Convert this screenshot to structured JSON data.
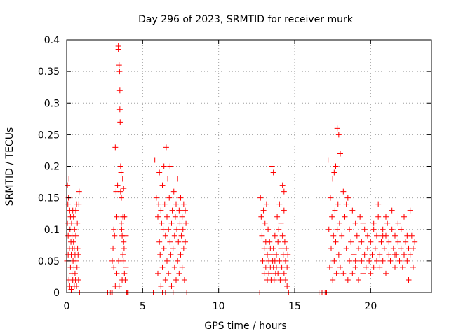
{
  "chart_data": {
    "type": "scatter",
    "title": "Day 296 of 2023, SRMTID for receiver murk",
    "xlabel": "GPS time / hours",
    "ylabel": "SRMTID / TECUs",
    "xlim": [
      0,
      24
    ],
    "ylim": [
      0,
      0.4
    ],
    "xticks": [
      0,
      5,
      10,
      15,
      20
    ],
    "yticks": [
      0,
      0.05,
      0.1,
      0.15,
      0.2,
      0.25,
      0.3,
      0.35,
      0.4
    ],
    "xtick_labels": [
      "0",
      "5",
      "10",
      "15",
      "20"
    ],
    "ytick_labels": [
      "0",
      "0.05",
      "0.1",
      "0.15",
      "0.2",
      "0.25",
      "0.3",
      "0.35",
      "0.4"
    ],
    "grid": true,
    "marker": "+",
    "marker_color": "#ff0000",
    "series": [
      {
        "name": "SRMTID",
        "x": [
          0.0,
          0.0,
          0.02,
          0.05,
          0.05,
          0.08,
          0.1,
          0.1,
          0.12,
          0.15,
          0.15,
          0.18,
          0.2,
          0.2,
          0.22,
          0.25,
          0.25,
          0.28,
          0.3,
          0.3,
          0.32,
          0.35,
          0.35,
          0.38,
          0.4,
          0.4,
          0.42,
          0.45,
          0.45,
          0.48,
          0.5,
          0.5,
          0.52,
          0.55,
          0.55,
          0.58,
          0.6,
          0.6,
          0.62,
          0.65,
          0.65,
          0.68,
          0.7,
          0.72,
          0.75,
          0.78,
          0.8,
          0.82,
          0.85,
          2.7,
          2.8,
          2.9,
          3.0,
          3.0,
          3.05,
          3.1,
          3.1,
          3.15,
          3.2,
          3.2,
          3.25,
          3.3,
          3.3,
          3.35,
          3.4,
          3.4,
          3.42,
          3.45,
          3.45,
          3.48,
          3.5,
          3.5,
          3.52,
          3.55,
          3.55,
          3.58,
          3.6,
          3.6,
          3.62,
          3.65,
          3.65,
          3.68,
          3.7,
          3.7,
          3.72,
          3.75,
          3.75,
          3.78,
          3.8,
          3.8,
          3.85,
          3.9,
          3.9,
          3.95,
          4.0,
          4.05,
          5.7,
          5.8,
          5.9,
          6.0,
          6.0,
          6.05,
          6.1,
          6.1,
          6.15,
          6.2,
          6.2,
          6.25,
          6.3,
          6.3,
          6.35,
          6.4,
          6.4,
          6.45,
          6.5,
          6.5,
          6.55,
          6.6,
          6.6,
          6.65,
          6.7,
          6.7,
          6.75,
          6.8,
          6.8,
          6.85,
          6.9,
          6.9,
          6.95,
          7.0,
          7.0,
          7.05,
          7.1,
          7.1,
          7.15,
          7.2,
          7.2,
          7.25,
          7.3,
          7.3,
          7.35,
          7.4,
          7.4,
          7.45,
          7.5,
          7.5,
          7.55,
          7.6,
          7.6,
          7.65,
          7.7,
          7.7,
          7.75,
          7.8,
          7.8,
          7.85,
          7.9,
          6.5,
          6.3,
          7.0,
          12.7,
          12.75,
          12.8,
          12.85,
          12.9,
          12.95,
          13.0,
          13.0,
          13.05,
          13.1,
          13.1,
          13.15,
          13.2,
          13.2,
          13.25,
          13.3,
          13.3,
          13.35,
          13.4,
          13.4,
          13.45,
          13.5,
          13.5,
          13.55,
          13.6,
          13.6,
          13.65,
          13.7,
          13.7,
          13.75,
          13.8,
          13.8,
          13.85,
          13.9,
          13.9,
          13.95,
          14.0,
          14.0,
          14.05,
          14.1,
          14.1,
          14.15,
          14.2,
          14.2,
          14.25,
          14.3,
          14.3,
          14.35,
          14.4,
          14.4,
          14.45,
          14.5,
          14.5,
          14.55,
          14.6,
          13.5,
          13.6,
          14.3,
          16.6,
          16.8,
          17.0,
          17.1,
          17.2,
          17.25,
          17.3,
          17.35,
          17.4,
          17.45,
          17.5,
          17.5,
          17.55,
          17.6,
          17.6,
          17.65,
          17.7,
          17.7,
          17.75,
          17.8,
          17.8,
          17.85,
          17.9,
          17.9,
          17.95,
          18.0,
          18.0,
          18.1,
          18.2,
          18.2,
          18.3,
          18.4,
          18.4,
          18.5,
          18.6,
          18.6,
          18.7,
          18.8,
          18.8,
          18.9,
          19.0,
          19.0,
          19.1,
          19.2,
          19.2,
          19.3,
          19.4,
          19.4,
          19.5,
          19.6,
          19.6,
          19.7,
          19.8,
          19.8,
          19.9,
          20.0,
          20.0,
          20.1,
          20.2,
          20.2,
          20.3,
          20.4,
          20.4,
          20.5,
          20.6,
          20.6,
          20.7,
          20.8,
          20.8,
          20.9,
          21.0,
          21.0,
          21.1,
          21.2,
          21.2,
          21.3,
          21.4,
          21.4,
          21.5,
          21.6,
          21.6,
          21.7,
          21.8,
          21.8,
          21.9,
          22.0,
          22.0,
          22.1,
          22.2,
          22.2,
          22.3,
          22.4,
          22.4,
          22.5,
          22.6,
          22.6,
          22.7,
          22.8,
          22.8,
          22.9,
          20.5,
          21.0,
          19.5,
          22.0,
          18.5,
          20.8,
          21.6,
          22.5,
          19.0,
          20.2
        ],
        "y": [
          0.21,
          0.18,
          0.05,
          0.17,
          0.11,
          0.14,
          0.06,
          0.09,
          0.15,
          0.02,
          0.18,
          0.07,
          0.13,
          0.01,
          0.1,
          0.04,
          0.12,
          0.08,
          0.005,
          0.06,
          0.11,
          0.03,
          0.09,
          0.07,
          0.13,
          0.02,
          0.05,
          0.08,
          0.12,
          0.04,
          0.01,
          0.07,
          0.1,
          0.03,
          0.06,
          0.02,
          0.13,
          0.09,
          0.05,
          0.14,
          0.01,
          0.04,
          0.11,
          0.07,
          0.06,
          0.02,
          0.14,
          0.16,
          0.0,
          0.0,
          0.0,
          0.0,
          0.0,
          0.05,
          0.07,
          0.04,
          0.1,
          0.09,
          0.01,
          0.23,
          0.16,
          0.03,
          0.12,
          0.17,
          0.39,
          0.385,
          0.05,
          0.36,
          0.01,
          0.35,
          0.32,
          0.29,
          0.27,
          0.2,
          0.16,
          0.19,
          0.15,
          0.11,
          0.1,
          0.02,
          0.09,
          0.18,
          0.06,
          0.12,
          0.05,
          0.08,
          0.165,
          0.07,
          0.03,
          0.12,
          0.02,
          0.04,
          0.09,
          0.0,
          0.0,
          0.0,
          0.0,
          0.21,
          0.15,
          0.03,
          0.12,
          0.14,
          0.08,
          0.19,
          0.06,
          0.13,
          0.01,
          0.11,
          0.17,
          0.04,
          0.1,
          0.2,
          0.07,
          0.14,
          0.02,
          0.09,
          0.23,
          0.12,
          0.05,
          0.18,
          0.1,
          0.03,
          0.15,
          0.08,
          0.2,
          0.06,
          0.11,
          0.01,
          0.13,
          0.0,
          0.07,
          0.16,
          0.09,
          0.04,
          0.12,
          0.14,
          0.02,
          0.1,
          0.05,
          0.18,
          0.08,
          0.13,
          0.03,
          0.11,
          0.06,
          0.15,
          0.09,
          0.12,
          0.04,
          0.1,
          0.07,
          0.14,
          0.02,
          0.13,
          0.08,
          0.11,
          0.0,
          0.0,
          0.0,
          0.0,
          0.0,
          0.15,
          0.12,
          0.09,
          0.05,
          0.13,
          0.07,
          0.03,
          0.11,
          0.04,
          0.08,
          0.14,
          0.06,
          0.02,
          0.1,
          0.05,
          0.03,
          0.08,
          0.04,
          0.07,
          0.02,
          0.06,
          0.03,
          0.05,
          0.04,
          0.07,
          0.02,
          0.09,
          0.05,
          0.03,
          0.06,
          0.04,
          0.12,
          0.08,
          0.03,
          0.1,
          0.05,
          0.14,
          0.02,
          0.11,
          0.07,
          0.04,
          0.17,
          0.09,
          0.06,
          0.13,
          0.03,
          0.08,
          0.05,
          0.02,
          0.07,
          0.04,
          0.01,
          0.06,
          0.0,
          0.2,
          0.19,
          0.16,
          0.0,
          0.0,
          0.0,
          0.0,
          0.21,
          0.1,
          0.04,
          0.15,
          0.07,
          0.12,
          0.02,
          0.18,
          0.09,
          0.05,
          0.19,
          0.13,
          0.08,
          0.2,
          0.03,
          0.1,
          0.26,
          0.14,
          0.06,
          0.25,
          0.11,
          0.04,
          0.22,
          0.09,
          0.16,
          0.03,
          0.12,
          0.07,
          0.14,
          0.02,
          0.1,
          0.05,
          0.08,
          0.13,
          0.03,
          0.06,
          0.11,
          0.04,
          0.09,
          0.07,
          0.02,
          0.12,
          0.05,
          0.08,
          0.03,
          0.1,
          0.06,
          0.04,
          0.09,
          0.07,
          0.05,
          0.03,
          0.08,
          0.06,
          0.1,
          0.04,
          0.07,
          0.05,
          0.09,
          0.12,
          0.06,
          0.04,
          0.08,
          0.1,
          0.05,
          0.07,
          0.09,
          0.03,
          0.11,
          0.06,
          0.08,
          0.05,
          0.1,
          0.13,
          0.07,
          0.04,
          0.09,
          0.06,
          0.11,
          0.08,
          0.05,
          0.07,
          0.1,
          0.04,
          0.12,
          0.06,
          0.08,
          0.09,
          0.05,
          0.07,
          0.13,
          0.06,
          0.09,
          0.04,
          0.07,
          0.08,
          0.14,
          0.12,
          0.11,
          0.1,
          0.15,
          0.09,
          0.06,
          0.02,
          0.05,
          0.11
        ]
      }
    ]
  }
}
